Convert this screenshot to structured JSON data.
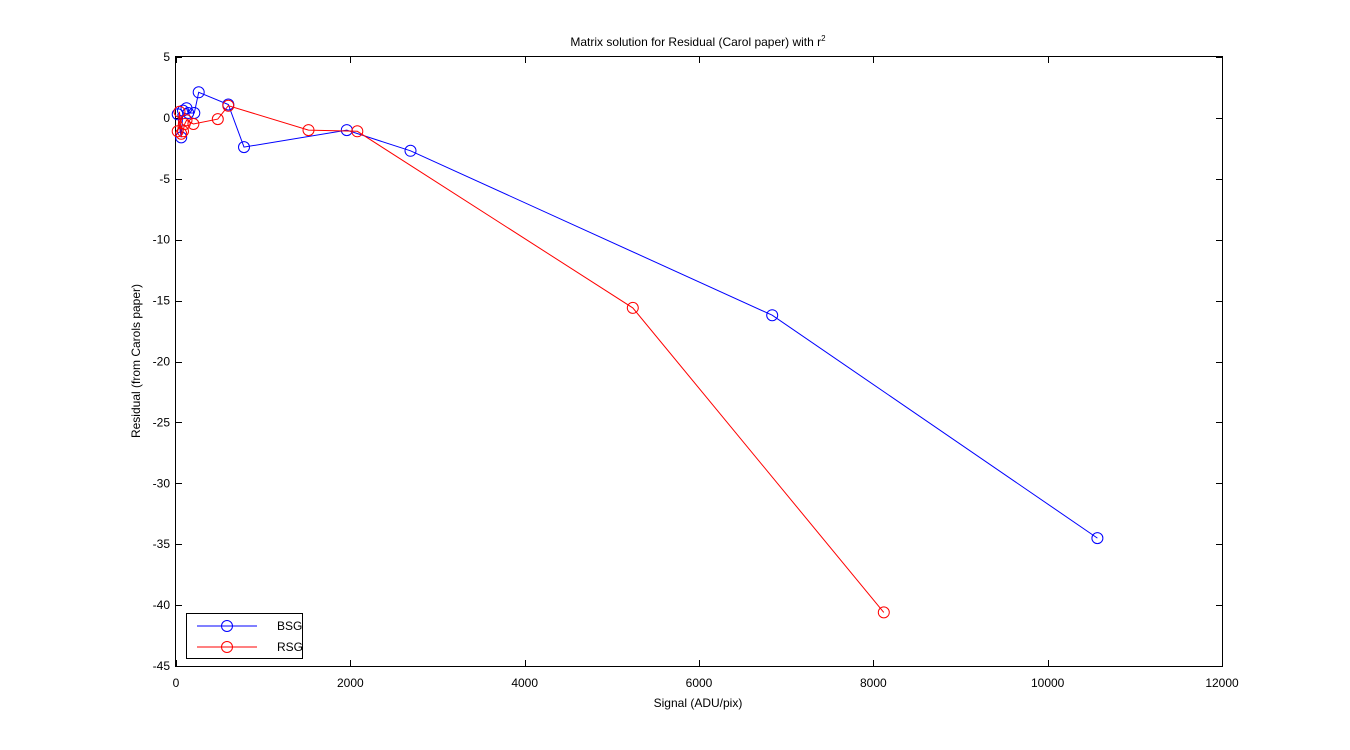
{
  "chart_data": {
    "type": "line",
    "title": "Matrix solution for Residual (Carol paper) with r",
    "title_superscript": "2",
    "xlabel": "Signal (ADU/pix)",
    "ylabel": "Residual (from Carols paper)",
    "xlim": [
      0,
      12000
    ],
    "ylim": [
      -45,
      5
    ],
    "xticks": [
      0,
      2000,
      4000,
      6000,
      8000,
      10000,
      12000
    ],
    "yticks": [
      5,
      0,
      -5,
      -10,
      -15,
      -20,
      -25,
      -30,
      -35,
      -40,
      -45
    ],
    "grid": false,
    "legend_position": "bottom-left",
    "marker": "circle",
    "series": [
      {
        "name": "BSG",
        "color": "#0000ff",
        "x": [
          20,
          60,
          80,
          120,
          140,
          210,
          260,
          600,
          780,
          1960,
          2690,
          6840,
          10570
        ],
        "y": [
          0.3,
          -1.6,
          0.6,
          0.8,
          0.4,
          0.4,
          2.1,
          1.1,
          -2.4,
          -1.0,
          -2.7,
          -16.2,
          -34.5
        ]
      },
      {
        "name": "RSG",
        "color": "#ff0000",
        "x": [
          20,
          40,
          60,
          80,
          100,
          120,
          200,
          480,
          600,
          1520,
          2080,
          5240,
          8120
        ],
        "y": [
          -1.1,
          0.5,
          -1.3,
          -1.1,
          -0.5,
          -0.2,
          -0.5,
          -0.1,
          1.0,
          -1.0,
          -1.1,
          -15.6,
          -40.6
        ]
      }
    ]
  }
}
